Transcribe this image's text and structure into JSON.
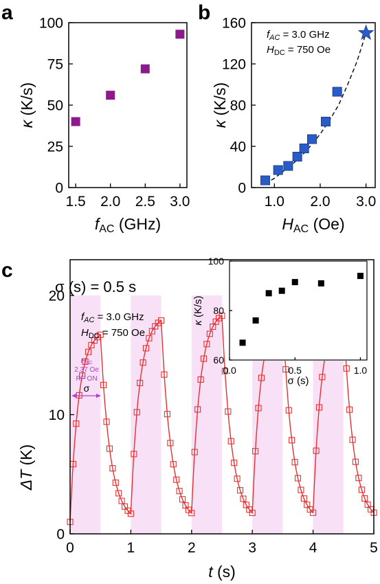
{
  "panels": {
    "a": {
      "letter": "a"
    },
    "b": {
      "letter": "b"
    },
    "c": {
      "letter": "c"
    }
  },
  "chart_data": [
    {
      "id": "a",
      "type": "scatter",
      "xlabel_symbol": "f",
      "xlabel_sub": "AC",
      "xlabel_unit": " (GHz)",
      "ylabel_symbol": "κ",
      "ylabel_unit": " (K/s)",
      "xlim": [
        1.4,
        3.1
      ],
      "ylim": [
        0,
        100
      ],
      "xticks": [
        1.5,
        2.0,
        2.5,
        3.0
      ],
      "xtick_labels": [
        "1.5",
        "2.0",
        "2.5",
        "3.0"
      ],
      "yticks": [
        0,
        25,
        50,
        75,
        100
      ],
      "ytick_labels": [
        "0",
        "25",
        "50",
        "75",
        "100"
      ],
      "marker_color": "#8b1a8b",
      "points": [
        {
          "x": 1.5,
          "y": 40
        },
        {
          "x": 2.0,
          "y": 56
        },
        {
          "x": 2.5,
          "y": 72
        },
        {
          "x": 3.0,
          "y": 93
        }
      ]
    },
    {
      "id": "b",
      "type": "scatter",
      "xlabel_symbol": "H",
      "xlabel_sub": "AC",
      "xlabel_unit": " (Oe)",
      "ylabel_symbol": "κ",
      "ylabel_unit": " (K/s)",
      "xlim": [
        0.5,
        3.2
      ],
      "ylim": [
        0,
        160
      ],
      "xticks": [
        1.0,
        2.0,
        3.0
      ],
      "xtick_labels": [
        "1.0",
        "2.0",
        "3.0"
      ],
      "yticks": [
        0,
        40,
        80,
        120,
        160
      ],
      "ytick_labels": [
        "0",
        "40",
        "80",
        "120",
        "160"
      ],
      "marker_color": "#2a5cc8",
      "annotation": {
        "f_sym": "f",
        "f_sub": "AC",
        "f_val": " = 3.0 GHz",
        "h_sym": "H",
        "h_sub": "DC",
        "h_val": " = 750 Oe"
      },
      "points": [
        {
          "x": 0.8,
          "y": 7
        },
        {
          "x": 1.08,
          "y": 17
        },
        {
          "x": 1.3,
          "y": 21
        },
        {
          "x": 1.5,
          "y": 30
        },
        {
          "x": 1.65,
          "y": 38
        },
        {
          "x": 1.82,
          "y": 47
        },
        {
          "x": 2.12,
          "y": 64
        },
        {
          "x": 2.37,
          "y": 93
        }
      ],
      "star_point": {
        "x": 3.0,
        "y": 150
      },
      "fit_line": {
        "style": "dashed",
        "x": [
          0.8,
          1.0,
          1.2,
          1.4,
          1.6,
          1.8,
          2.0,
          2.2,
          2.4,
          2.6,
          2.8,
          3.0
        ],
        "y": [
          4,
          9,
          16,
          23,
          31,
          41,
          52,
          65,
          80,
          100,
          122,
          150
        ]
      }
    },
    {
      "id": "c",
      "type": "line",
      "title": "σ (s) = 0.5 s",
      "xlabel_symbol": "t",
      "xlabel_unit": " (s)",
      "ylabel_symbol": "ΔT",
      "ylabel_unit": " (K)",
      "xlim": [
        0,
        5
      ],
      "ylim": [
        0,
        23
      ],
      "xticks": [
        0,
        1,
        2,
        3,
        4,
        5
      ],
      "xtick_labels": [
        "0",
        "1",
        "2",
        "3",
        "4",
        "5"
      ],
      "yticks": [
        0,
        10,
        20
      ],
      "ytick_labels": [
        "0",
        "10",
        "20"
      ],
      "line_color": "#e53030",
      "shade_color": "#f8e0f6",
      "annotation": {
        "f_sym": "f",
        "f_sub": "AC",
        "f_val": " = 3.0 GHz",
        "h_sym": "H",
        "h_sub": "DC",
        "h_val": " = 750 Oe"
      },
      "rf_label": {
        "h_sym": "H",
        "h_sub": "AC",
        "line2": "2.37 Oe",
        "line3": "RF ON",
        "sigma": "σ"
      },
      "on_intervals": [
        [
          0,
          0.5
        ],
        [
          1.0,
          1.5
        ],
        [
          2.0,
          2.5
        ],
        [
          3.0,
          3.5
        ],
        [
          4.0,
          4.5
        ]
      ],
      "cycle_peaks": [
        16.7,
        17.9,
        18.3,
        18.5,
        18.6
      ],
      "baseline": 1.0,
      "tau_heat": 0.14,
      "tau_cool": 0.16
    },
    {
      "id": "c-inset",
      "type": "scatter",
      "xlabel": "σ (s)",
      "ylabel_symbol": "κ",
      "ylabel_unit": " (K/s)",
      "xlim": [
        0,
        1.05
      ],
      "ylim": [
        60,
        100
      ],
      "xticks": [
        0.0,
        0.5,
        1.0
      ],
      "xtick_labels": [
        "0.0",
        "0.5",
        "1.0"
      ],
      "yticks": [
        60,
        80,
        100
      ],
      "ytick_labels": [
        "60",
        "80",
        "100"
      ],
      "marker_color": "#000000",
      "points": [
        {
          "x": 0.1,
          "y": 67
        },
        {
          "x": 0.2,
          "y": 76
        },
        {
          "x": 0.3,
          "y": 87
        },
        {
          "x": 0.4,
          "y": 88
        },
        {
          "x": 0.5,
          "y": 91.5
        },
        {
          "x": 0.7,
          "y": 91
        },
        {
          "x": 1.0,
          "y": 94
        }
      ]
    }
  ]
}
